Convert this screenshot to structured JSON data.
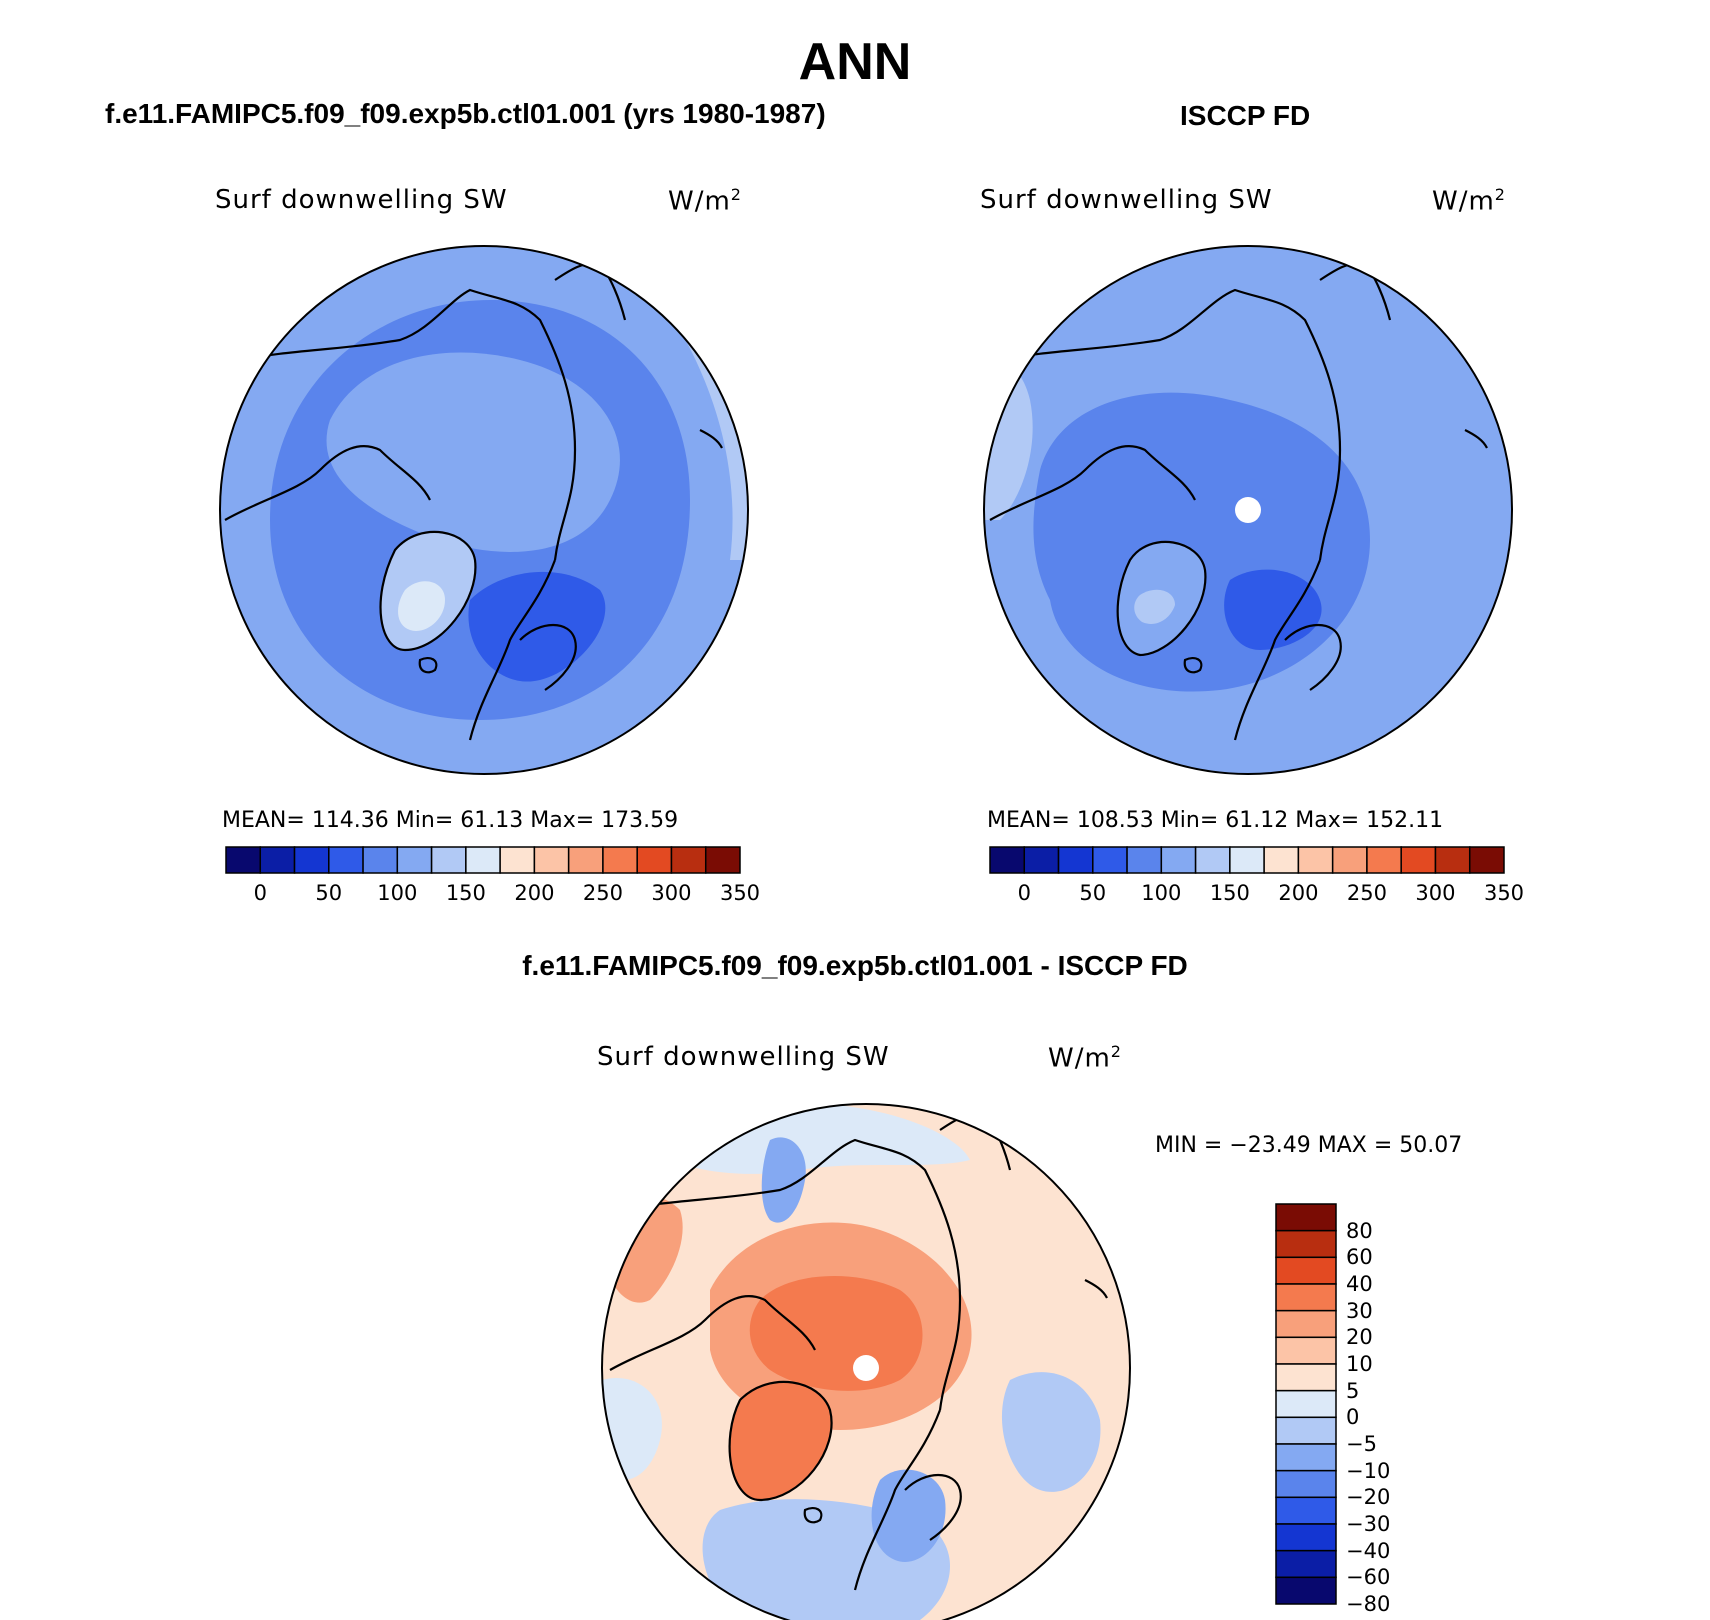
{
  "figure": {
    "title": "ANN",
    "left_panel_title": "f.e11.FAMIPC5.f09_f09.exp5b.ctl01.001 (yrs 1980-1987)",
    "right_panel_title": "ISCCP FD",
    "diff_panel_title": "f.e11.FAMIPC5.f09_f09.exp5b.ctl01.001 - ISCCP FD"
  },
  "panels": {
    "left": {
      "variable": "Surf downwelling SW",
      "units_base": "W/m",
      "units_exp": "2",
      "stats": "MEAN= 114.36   Min=   61.13   Max= 173.59"
    },
    "right": {
      "variable": "Surf downwelling SW",
      "units_base": "W/m",
      "units_exp": "2",
      "stats": "MEAN= 108.53   Min=   61.12   Max= 152.11"
    },
    "diff": {
      "variable": "Surf downwelling SW",
      "units_base": "W/m",
      "units_exp": "2",
      "stats": "MIN = −23.49 MAX =  50.07"
    }
  },
  "colorbars": {
    "absolute": {
      "colors": [
        "#08086e",
        "#0b1ea6",
        "#1436d2",
        "#2f5ae8",
        "#5a84ec",
        "#84a9f2",
        "#b1c9f5",
        "#dce9f8",
        "#fde3d1",
        "#fcc4a7",
        "#f8a07b",
        "#f47a4e",
        "#e34a22",
        "#b82e10",
        "#7a0c04"
      ],
      "tick_labels": [
        "0",
        "50",
        "100",
        "150",
        "200",
        "250",
        "300",
        "350"
      ]
    },
    "difference": {
      "colors": [
        "#7a0c04",
        "#b82e10",
        "#e34a22",
        "#f47a4e",
        "#f8a07b",
        "#fcc4a7",
        "#fde3d1",
        "#dce9f8",
        "#b1c9f5",
        "#84a9f2",
        "#5a84ec",
        "#2f5ae8",
        "#1436d2",
        "#0b1ea6",
        "#08086e"
      ],
      "tick_labels": [
        "80",
        "60",
        "40",
        "30",
        "20",
        "10",
        "5",
        "0",
        "−5",
        "−10",
        "−20",
        "−30",
        "−40",
        "−60",
        "−80"
      ]
    }
  },
  "map_colors": {
    "left": [
      "#84a9f2",
      "#5a84ec",
      "#2f5ae8",
      "#b1c9f5",
      "#dce9f8"
    ],
    "right": [
      "#84a9f2",
      "#5a84ec",
      "#2f5ae8",
      "#b1c9f5"
    ],
    "diff": [
      "#fde3d1",
      "#fcc4a7",
      "#f8a07b",
      "#f47a4e",
      "#dce9f8",
      "#b1c9f5",
      "#84a9f2",
      "#5a84ec"
    ]
  }
}
